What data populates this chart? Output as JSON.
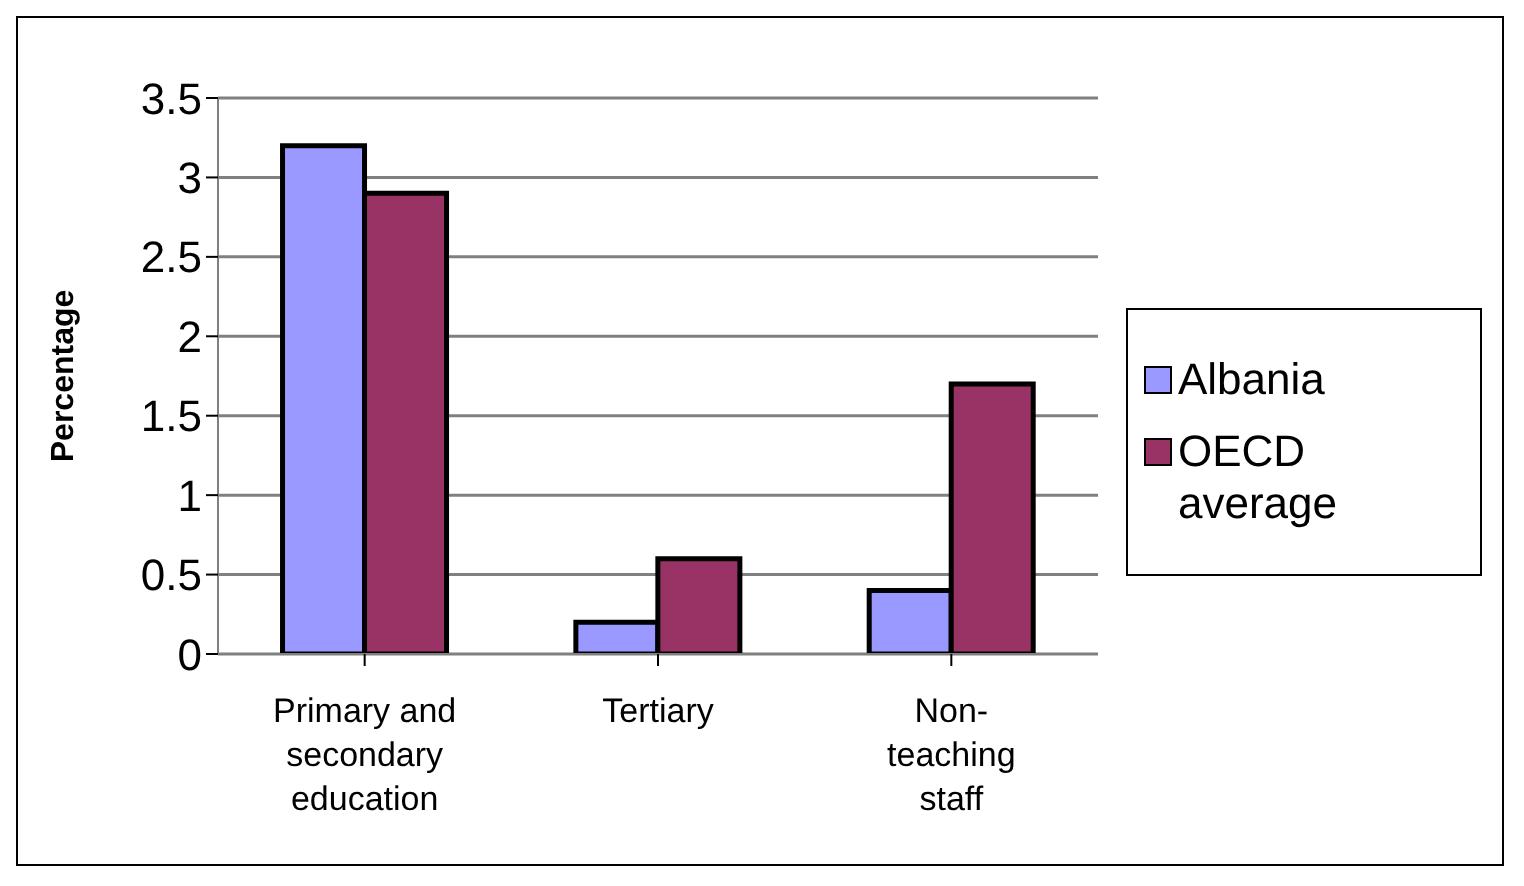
{
  "chart_data": {
    "type": "bar",
    "ylabel": "Percentage",
    "categories": [
      "Primary and secondary education",
      "Tertiary",
      "Non-teaching staff"
    ],
    "series": [
      {
        "name": "Albania",
        "color": "#9999ff",
        "values": [
          3.2,
          0.2,
          0.4
        ]
      },
      {
        "name": "OECD average",
        "color": "#993366",
        "values": [
          2.9,
          0.6,
          1.7
        ]
      }
    ],
    "ylim": [
      0,
      3.5
    ],
    "yticks": [
      0,
      0.5,
      1,
      1.5,
      2,
      2.5,
      3,
      3.5
    ],
    "grid": "y",
    "legend": "right"
  }
}
